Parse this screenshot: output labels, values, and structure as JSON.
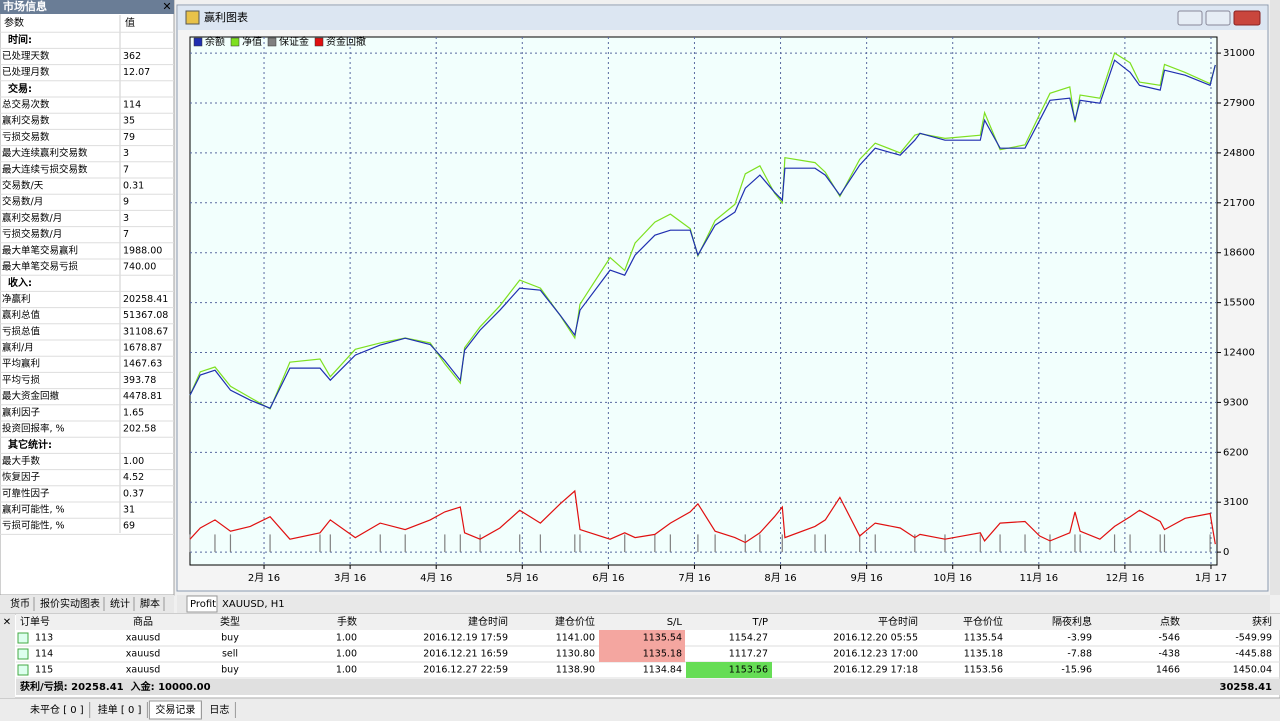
{
  "stats_panel": {
    "title": "市场信息",
    "header": [
      "参数",
      "值"
    ],
    "sections": [
      {
        "title": "时间:",
        "rows": [
          [
            "已处理天数",
            "362"
          ],
          [
            "已处理月数",
            "12.07"
          ]
        ]
      },
      {
        "title": "交易:",
        "rows": [
          [
            "总交易次数",
            "114"
          ],
          [
            "赢利交易数",
            "35"
          ],
          [
            "亏损交易数",
            "79"
          ],
          [
            "最大连续赢利交易数",
            "3"
          ],
          [
            "最大连续亏损交易数",
            "7"
          ],
          [
            "交易数/天",
            "0.31"
          ],
          [
            "交易数/月",
            "9"
          ],
          [
            "赢利交易数/月",
            "3"
          ],
          [
            "亏损交易数/月",
            "7"
          ],
          [
            "最大单笔交易赢利",
            "1988.00"
          ],
          [
            "最大单笔交易亏损",
            "740.00"
          ]
        ]
      },
      {
        "title": "收入:",
        "rows": [
          [
            "净赢利",
            "20258.41"
          ],
          [
            "赢利总值",
            "51367.08"
          ],
          [
            "亏损总值",
            "31108.67"
          ],
          [
            "赢利/月",
            "1678.87"
          ],
          [
            "平均赢利",
            "1467.63"
          ],
          [
            "平均亏损",
            "393.78"
          ],
          [
            "最大资金回撤",
            "4478.81"
          ],
          [
            "赢利因子",
            "1.65"
          ],
          [
            "投资回报率, %",
            "202.58"
          ]
        ]
      },
      {
        "title": "其它统计:",
        "rows": [
          [
            "最大手数",
            "1.00"
          ],
          [
            "恢复因子",
            "4.52"
          ],
          [
            "可靠性因子",
            "0.37"
          ],
          [
            "赢利可能性, %",
            "31"
          ],
          [
            "亏损可能性, %",
            "69"
          ]
        ]
      }
    ],
    "tabs": [
      "货币",
      "报价实动图表",
      "统计",
      "脚本"
    ]
  },
  "chart_window": {
    "title": "赢利图表",
    "tabs": [
      "Profit",
      "XAUUSD, H1"
    ],
    "chart": {
      "type": "line",
      "x": [
        0.14,
        0.26,
        0.43,
        0.61,
        0.84,
        1.07,
        1.3,
        1.65,
        1.77,
        2.06,
        2.35,
        2.64,
        2.93,
        3.1,
        3.28,
        3.33,
        3.51,
        3.74,
        3.97,
        4.21,
        4.44,
        4.61,
        4.67,
        5.02,
        5.19,
        5.31,
        5.54,
        5.72,
        5.95,
        6.04,
        6.24,
        6.47,
        6.59,
        6.76,
        6.93,
        7.02,
        7.05,
        7.4,
        7.52,
        7.69,
        7.92,
        8.1,
        8.39,
        8.56,
        8.62,
        8.91,
        9.32,
        9.37,
        9.55,
        9.84,
        10.01,
        10.13,
        10.36,
        10.42,
        10.48,
        10.71,
        10.88,
        11.06,
        11.17,
        11.41,
        11.46,
        11.7,
        11.99,
        12.05
      ],
      "xlim": [
        0.14,
        12.07
      ],
      "xticks": [
        {
          "value": 1,
          "label": "2月 16"
        },
        {
          "value": 2,
          "label": "3月 16"
        },
        {
          "value": 3,
          "label": "4月 16"
        },
        {
          "value": 4,
          "label": "5月 16"
        },
        {
          "value": 5,
          "label": "6月 16"
        },
        {
          "value": 6,
          "label": "7月 16"
        },
        {
          "value": 7,
          "label": "8月 16"
        },
        {
          "value": 8,
          "label": "9月 16"
        },
        {
          "value": 9,
          "label": "10月 16"
        },
        {
          "value": 10,
          "label": "11月 16"
        },
        {
          "value": 11,
          "label": "12月 16"
        },
        {
          "value": 12,
          "label": "1月 17"
        }
      ],
      "ylim": [
        -800,
        32000
      ],
      "yticks": [
        0,
        3100,
        6200,
        9300,
        12400,
        15500,
        18600,
        21700,
        24800,
        27900,
        31000
      ],
      "grid": true,
      "legend": "top-left",
      "series": [
        {
          "name": "余额",
          "color": "#1f2fb0",
          "values": [
            9750,
            11000,
            11300,
            10060,
            9440,
            8940,
            11430,
            11430,
            10680,
            12240,
            12860,
            13290,
            12900,
            11900,
            10680,
            12550,
            13790,
            15030,
            16400,
            16270,
            14720,
            13480,
            15030,
            17520,
            17200,
            18450,
            19690,
            20000,
            20000,
            18450,
            20310,
            21120,
            22610,
            23420,
            22360,
            21860,
            23850,
            23850,
            23420,
            22170,
            24040,
            25090,
            24660,
            25590,
            26020,
            25590,
            25590,
            26830,
            25090,
            25090,
            26830,
            28070,
            28200,
            26830,
            28070,
            27890,
            30560,
            29810,
            29000,
            28700,
            29940,
            29630,
            29000,
            30258
          ]
        },
        {
          "name": "净值",
          "color": "#7ee020",
          "values": [
            9750,
            11200,
            11500,
            10300,
            9600,
            8900,
            11800,
            12000,
            10900,
            12600,
            13000,
            13300,
            13000,
            11700,
            10500,
            12700,
            14000,
            15300,
            16900,
            16400,
            14700,
            13300,
            15400,
            18300,
            17500,
            19200,
            20500,
            21000,
            20100,
            18400,
            20600,
            21600,
            23500,
            24000,
            22300,
            21700,
            24500,
            24200,
            23600,
            22100,
            24400,
            25400,
            24800,
            25900,
            26000,
            25700,
            25900,
            27300,
            25000,
            25300,
            27200,
            28500,
            28900,
            26700,
            28400,
            28200,
            31000,
            30400,
            29200,
            29000,
            30300,
            29800,
            29100,
            30258
          ]
        },
        {
          "name": "保证金",
          "color": "#808080",
          "type": "bar",
          "values": [
            1100,
            0,
            1100,
            1100,
            0,
            1100,
            0,
            1100,
            1100,
            0,
            1100,
            1100,
            0,
            1100,
            1100,
            0,
            1100,
            0,
            1100,
            1100,
            0,
            1100,
            1100,
            0,
            1100,
            0,
            1100,
            1100,
            0,
            1100,
            1100,
            0,
            1100,
            1100,
            0,
            1100,
            0,
            1100,
            1100,
            0,
            1100,
            1100,
            0,
            1100,
            0,
            1100,
            1100,
            0,
            1100,
            1100,
            0,
            1100,
            0,
            1100,
            1100,
            0,
            1100,
            1100,
            0,
            1100,
            1100,
            0,
            1100,
            0
          ]
        },
        {
          "name": "资金回撤",
          "color": "#e01010",
          "values": [
            800,
            1500,
            2000,
            1300,
            1600,
            2200,
            800,
            1200,
            2000,
            900,
            1800,
            1400,
            2000,
            2500,
            2800,
            1200,
            800,
            1500,
            2600,
            1800,
            3000,
            3800,
            1400,
            800,
            1200,
            900,
            1100,
            1800,
            2500,
            3000,
            1300,
            900,
            600,
            1200,
            2200,
            2800,
            900,
            1600,
            2000,
            3400,
            1000,
            1800,
            1500,
            900,
            1100,
            800,
            1200,
            700,
            1800,
            1900,
            1000,
            700,
            1200,
            2500,
            1300,
            800,
            1600,
            2200,
            2600,
            1900,
            1400,
            2100,
            2400,
            500
          ]
        }
      ]
    }
  },
  "trades": {
    "header": [
      "订单号",
      "商品",
      "类型",
      "手数",
      "建仓时间",
      "建仓价位",
      "S/L",
      "T/P",
      "平仓时间",
      "平仓价位",
      "隔夜利息",
      "点数",
      "获利"
    ],
    "rows": [
      [
        "113",
        "xauusd",
        "buy",
        "1.00",
        "2016.12.19 17:59",
        "1141.00",
        "1135.54",
        "1154.27",
        "2016.12.20 05:55",
        "1135.54",
        "-3.99",
        "-546",
        "-549.99"
      ],
      [
        "114",
        "xauusd",
        "sell",
        "1.00",
        "2016.12.21 16:59",
        "1130.80",
        "1135.18",
        "1117.27",
        "2016.12.23 17:00",
        "1135.18",
        "-7.88",
        "-438",
        "-445.88"
      ],
      [
        "115",
        "xauusd",
        "buy",
        "1.00",
        "2016.12.27 22:59",
        "1138.90",
        "1134.84",
        "1153.56",
        "2016.12.29 17:18",
        "1153.56",
        "-15.96",
        "1466",
        "1450.04"
      ]
    ],
    "summary": "获利/亏损: 20258.41  入金: 10000.00",
    "total": "30258.41"
  },
  "bottom_tabs": [
    "未平仓 [ 0 ]",
    "挂单 [ 0 ]",
    "交易记录",
    "日志"
  ]
}
